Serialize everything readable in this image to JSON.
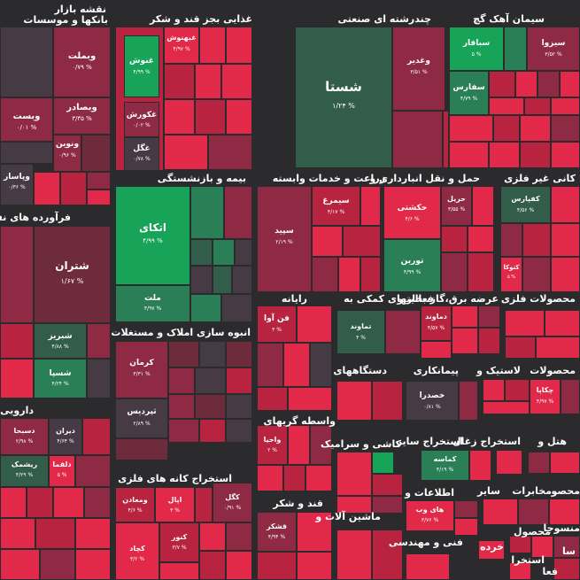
{
  "sectors": [
    {
      "id": "bank",
      "title_line1": "نقشه بازار",
      "title_line2": "بانکها و موسسات"
    },
    {
      "id": "food",
      "title": "غذایی بجز قند و شکر"
    },
    {
      "id": "chem",
      "title": "چندرشته ای صنعتی"
    },
    {
      "id": "cement",
      "title": "سیمان آهک گچ"
    },
    {
      "id": "insurance",
      "title": "بیمه و بازنشستگی"
    },
    {
      "id": "agri",
      "title": "زراعت و خدمات وابسته"
    },
    {
      "id": "transport",
      "title": "حمل و نقل انبارداری و"
    },
    {
      "id": "minerals",
      "title": "کانی غیر فلزی"
    },
    {
      "id": "refinery",
      "title": "فرآورده های نفتی"
    },
    {
      "id": "computer",
      "title": "رایانه"
    },
    {
      "id": "support",
      "title": "فعالیتهای کمکی به"
    },
    {
      "id": "electricity",
      "title": "عرضه برق،گاز،بخار و"
    },
    {
      "id": "metal_products",
      "title": "محصولات فلزی"
    },
    {
      "id": "realestate",
      "title": "انبوه سازی املاک و مستغلات"
    },
    {
      "id": "appliances",
      "title": "دستگاههای"
    },
    {
      "id": "contractors",
      "title": "پیمانکاری"
    },
    {
      "id": "rubber",
      "title": "لاستیک و"
    },
    {
      "id": "products",
      "title": "محصولات"
    },
    {
      "id": "pharma",
      "title": "دارویی"
    },
    {
      "id": "brokers",
      "title": "واسطه گریهای"
    },
    {
      "id": "ceramic",
      "title": "کاشی و سرامیک"
    },
    {
      "id": "other_mining",
      "title": "استخراج سایر"
    },
    {
      "id": "coal",
      "title": "استخراج زغال"
    },
    {
      "id": "hotel",
      "title": "هتل و"
    },
    {
      "id": "metal_ores",
      "title": "استخراج کانه های فلزی"
    },
    {
      "id": "sugar",
      "title": "قند و شکر"
    },
    {
      "id": "machinery",
      "title": "ماشین آلات و"
    },
    {
      "id": "info",
      "title": "اطلاعات و"
    },
    {
      "id": "misc",
      "title": "سایر"
    },
    {
      "id": "telecom",
      "title": "مخابرات"
    },
    {
      "id": "consumer",
      "title": "محصو"
    },
    {
      "id": "engineering",
      "title": "فنی و مهندسی"
    },
    {
      "id": "retail",
      "title": "خرده"
    },
    {
      "id": "textile",
      "title": "منسوجا"
    },
    {
      "id": "finance",
      "title": "سا"
    },
    {
      "id": "activity",
      "title": "فعا"
    },
    {
      "id": "mine2",
      "title": "استخرا"
    },
    {
      "id": "auto",
      "title": "محصول"
    }
  ],
  "tiles": [
    {
      "symbol": "وبملت",
      "change": "۰/۷۹ %"
    },
    {
      "symbol": "وبصادر",
      "change": "۳/۳۵ %"
    },
    {
      "symbol": "ونوین",
      "change": "۰/۹۶ %"
    },
    {
      "symbol": "وپاسار",
      "change": "۰/۳۶ %"
    },
    {
      "symbol": "وبست",
      "change": "۰/۰۱ %"
    },
    {
      "symbol": "غبهنوش",
      "change": "۴/۹۷ %"
    },
    {
      "symbol": "غنوش",
      "change": "۴/۹۹ %"
    },
    {
      "symbol": "غکورش",
      "change": "۰/۰۲ %"
    },
    {
      "symbol": "غگل",
      "change": "۰/۷۸ %"
    },
    {
      "symbol": "شستا",
      "change": "۱/۲۴ %"
    },
    {
      "symbol": "وغدیر",
      "change": "۳/۵۱ %"
    },
    {
      "symbol": "سبافار",
      "change": "۵ %"
    },
    {
      "symbol": "سیزوا",
      "change": "۳/۵۲ %"
    },
    {
      "symbol": "سفارس",
      "change": "۴/۷۹ %"
    },
    {
      "symbol": "اتکای",
      "change": "۴/۹۹ %"
    },
    {
      "symbol": "ملت",
      "change": "۴/۹۷ %"
    },
    {
      "symbol": "سیمرغ",
      "change": "۴/۱۷ %"
    },
    {
      "symbol": "سپید",
      "change": "۲/۱۹ %"
    },
    {
      "symbol": "حکشتی",
      "change": "۴/۶ %"
    },
    {
      "symbol": "حریل",
      "change": "۳/۵۵ %"
    },
    {
      "symbol": "تورین",
      "change": "۴/۹۹ %"
    },
    {
      "symbol": "کفپارس",
      "change": "۴/۵۶ %"
    },
    {
      "symbol": "کتوکا",
      "change": "۵ %"
    },
    {
      "symbol": "شتران",
      "change": "۱/۶۷ %"
    },
    {
      "symbol": "شبریز",
      "change": "۴/۸۸ %"
    },
    {
      "symbol": "شسپا",
      "change": "۴/۲۴ %"
    },
    {
      "symbol": "فن آوا",
      "change": "۳ %"
    },
    {
      "symbol": "تماوند",
      "change": "۴ %"
    },
    {
      "symbol": "دماوند",
      "change": "۴/۵۷ %"
    },
    {
      "symbol": "کرمان",
      "change": "۳/۳۱ %"
    },
    {
      "symbol": "ثپردیس",
      "change": "۲/۸۹ %"
    },
    {
      "symbol": "خصدرا",
      "change": "۰/۸۱ %"
    },
    {
      "symbol": "چکاپا",
      "change": "۴/۹۷ %"
    },
    {
      "symbol": "دیران",
      "change": "۴/۶۴ %"
    },
    {
      "symbol": "دسبحا",
      "change": "۲/۹۸ %"
    },
    {
      "symbol": "دلقما",
      "change": "۵ %"
    },
    {
      "symbol": "ریشمک",
      "change": "۴/۲۹ %"
    },
    {
      "symbol": "واحیا",
      "change": "۲ %"
    },
    {
      "symbol": "کماسه",
      "change": "۴/۱۹ %"
    },
    {
      "symbol": "ومعادن",
      "change": "۴/۶ %"
    },
    {
      "symbol": "کگل",
      "change": "۰/۹۱ %"
    },
    {
      "symbol": "اپال",
      "change": "۳ %"
    },
    {
      "symbol": "کنور",
      "change": "۳/۷ %"
    },
    {
      "symbol": "کچاد",
      "change": "۳/۲ %"
    },
    {
      "symbol": "قشکر",
      "change": "۴/۹۴ %"
    },
    {
      "symbol": "های وب",
      "change": "۳/۷۶ %"
    }
  ],
  "colors": {
    "strong_green": "#17a458",
    "mid_green": "#2a7f57",
    "weak_green": "#325d4b",
    "strong_red": "#e3294a",
    "mid_red": "#b8233f",
    "weak_red": "#8e2a43",
    "faint_red": "#6d2b3c",
    "neutral": "#463b45",
    "background": "#2b2b2e"
  }
}
